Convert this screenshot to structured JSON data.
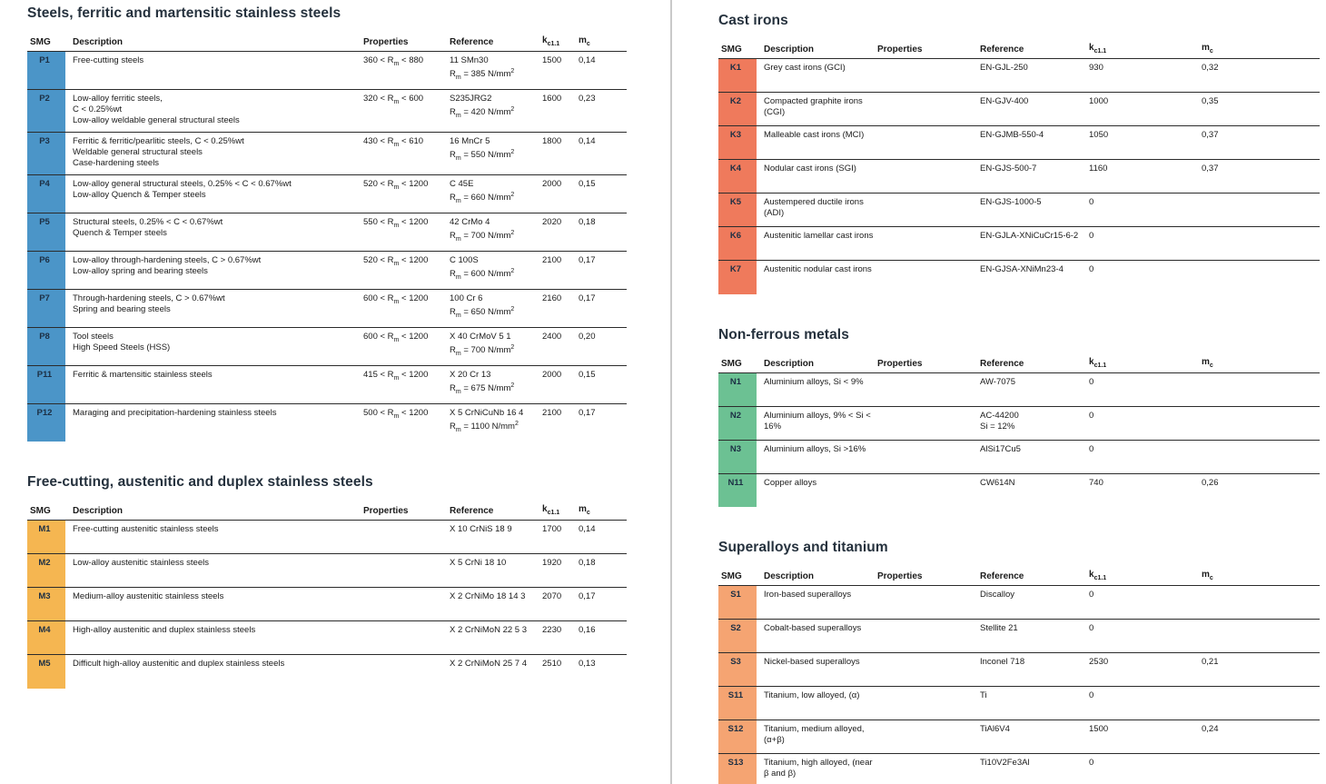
{
  "columns": {
    "smg": "SMG",
    "description": "Description",
    "properties": "Properties",
    "reference": "Reference",
    "kc": "k_{c1.1}",
    "mc": "m_{c}"
  },
  "divider_color": "#c9c9c9",
  "sections": [
    {
      "id": "steels-ferritic-martensitic",
      "pane": "left",
      "title": "Steels, ferritic and martensitic stainless steels",
      "badge_color": "#4b95c8",
      "rows": [
        {
          "smg": "P1",
          "description": [
            "Free-cutting steels"
          ],
          "properties": "360 < R_{m} < 880",
          "reference": [
            "11 SMn30",
            "R_{m} = 385 N/mm^{2}"
          ],
          "kc": "1500",
          "mc": "0,14"
        },
        {
          "smg": "P2",
          "description": [
            "Low-alloy ferritic steels,",
            "C < 0.25%wt",
            "Low-alloy weldable general structural steels"
          ],
          "properties": "320 < R_{m} < 600",
          "reference": [
            "S235JRG2",
            "R_{m} = 420 N/mm^{2}"
          ],
          "kc": "1600",
          "mc": "0,23"
        },
        {
          "smg": "P3",
          "description": [
            "Ferritic & ferritic/pearlitic steels, C < 0.25%wt",
            "Weldable general structural steels",
            "Case-hardening steels"
          ],
          "properties": "430 < R_{m} < 610",
          "reference": [
            "16 MnCr 5",
            "R_{m} = 550 N/mm^{2}"
          ],
          "kc": "1800",
          "mc": "0,14"
        },
        {
          "smg": "P4",
          "description": [
            "Low-alloy general structural steels, 0.25% < C < 0.67%wt",
            "Low-alloy Quench & Temper steels"
          ],
          "properties": "520 < R_{m} < 1200",
          "reference": [
            "C 45E",
            "R_{m} = 660 N/mm^{2}"
          ],
          "kc": "2000",
          "mc": "0,15"
        },
        {
          "smg": "P5",
          "description": [
            "Structural steels, 0.25% < C < 0.67%wt",
            "Quench & Temper steels"
          ],
          "properties": "550 < R_{m} < 1200",
          "reference": [
            "42 CrMo 4",
            "R_{m} = 700 N/mm^{2}"
          ],
          "kc": "2020",
          "mc": "0,18"
        },
        {
          "smg": "P6",
          "description": [
            "Low-alloy through-hardening steels, C > 0.67%wt",
            "Low-alloy spring and bearing steels"
          ],
          "properties": "520 < R_{m} < 1200",
          "reference": [
            "C 100S",
            "R_{m} = 600 N/mm^{2}"
          ],
          "kc": "2100",
          "mc": "0,17"
        },
        {
          "smg": "P7",
          "description": [
            "Through-hardening steels, C > 0.67%wt",
            "Spring and bearing steels"
          ],
          "properties": "600 < R_{m} < 1200",
          "reference": [
            "100 Cr 6",
            "R_{m} = 650 N/mm^{2}"
          ],
          "kc": "2160",
          "mc": "0,17"
        },
        {
          "smg": "P8",
          "description": [
            "Tool steels",
            "High Speed Steels (HSS)"
          ],
          "properties": "600 < R_{m} < 1200",
          "reference": [
            "X 40 CrMoV 5 1",
            "R_{m} = 700 N/mm^{2}"
          ],
          "kc": "2400",
          "mc": "0,20"
        },
        {
          "smg": "P11",
          "description": [
            "Ferritic & martensitic stainless steels"
          ],
          "properties": "415 < R_{m} < 1200",
          "reference": [
            "X 20 Cr 13",
            "R_{m} = 675 N/mm^{2}"
          ],
          "kc": "2000",
          "mc": "0,15"
        },
        {
          "smg": "P12",
          "description": [
            "Maraging and precipitation-hardening stainless steels"
          ],
          "properties": "500 < R_{m} < 1200",
          "reference": [
            "X 5 CrNiCuNb 16 4",
            "R_{m} = 1100 N/mm^{2}"
          ],
          "kc": "2100",
          "mc": "0,17"
        }
      ]
    },
    {
      "id": "free-cutting-austenitic-duplex",
      "pane": "left",
      "title": "Free-cutting, austenitic and duplex stainless steels",
      "badge_color": "#f5b651",
      "rows": [
        {
          "smg": "M1",
          "description": [
            "Free-cutting austenitic stainless steels"
          ],
          "properties": "",
          "reference": [
            "X 10 CrNiS 18 9"
          ],
          "kc": "1700",
          "mc": "0,14"
        },
        {
          "smg": "M2",
          "description": [
            "Low-alloy austenitic stainless steels"
          ],
          "properties": "",
          "reference": [
            "X 5 CrNi 18 10"
          ],
          "kc": "1920",
          "mc": "0,18"
        },
        {
          "smg": "M3",
          "description": [
            "Medium-alloy austenitic stainless steels"
          ],
          "properties": "",
          "reference": [
            "X 2 CrNiMo 18 14 3"
          ],
          "kc": "2070",
          "mc": "0,17"
        },
        {
          "smg": "M4",
          "description": [
            "High-alloy austenitic and duplex stainless steels"
          ],
          "properties": "",
          "reference": [
            "X 2 CrNiMoN 22 5 3"
          ],
          "kc": "2230",
          "mc": "0,16"
        },
        {
          "smg": "M5",
          "description": [
            "Difficult high-alloy austenitic and duplex stainless steels"
          ],
          "properties": "",
          "reference": [
            "X 2 CrNiMoN 25 7 4"
          ],
          "kc": "2510",
          "mc": "0,13"
        }
      ]
    },
    {
      "id": "cast-irons",
      "pane": "right",
      "title": "Cast irons",
      "badge_color": "#ef7a5c",
      "rows": [
        {
          "smg": "K1",
          "description": [
            "Grey cast irons (GCI)"
          ],
          "properties": "",
          "reference": [
            "EN-GJL-250"
          ],
          "kc": "930",
          "mc": "0,32"
        },
        {
          "smg": "K2",
          "description": [
            "Compacted graphite irons",
            "(CGI)"
          ],
          "properties": "",
          "reference": [
            "EN-GJV-400"
          ],
          "kc": "1000",
          "mc": "0,35"
        },
        {
          "smg": "K3",
          "description": [
            "Malleable cast irons (MCI)"
          ],
          "properties": "",
          "reference": [
            "EN-GJMB-550-4"
          ],
          "kc": "1050",
          "mc": "0,37"
        },
        {
          "smg": "K4",
          "description": [
            "Nodular cast irons (SGI)"
          ],
          "properties": "",
          "reference": [
            "EN-GJS-500-7"
          ],
          "kc": "1160",
          "mc": "0,37"
        },
        {
          "smg": "K5",
          "description": [
            "Austempered ductile irons",
            "(ADI)"
          ],
          "properties": "",
          "reference": [
            "EN-GJS-1000-5"
          ],
          "kc": "0",
          "mc": ""
        },
        {
          "smg": "K6",
          "description": [
            "Austenitic lamellar cast irons"
          ],
          "properties": "",
          "reference": [
            "EN-GJLA-XNiCuCr15-6-2"
          ],
          "kc": "0",
          "mc": ""
        },
        {
          "smg": "K7",
          "description": [
            "Austenitic nodular cast irons"
          ],
          "properties": "",
          "reference": [
            "EN-GJSA-XNiMn23-4"
          ],
          "kc": "0",
          "mc": ""
        }
      ]
    },
    {
      "id": "non-ferrous-metals",
      "pane": "right",
      "title": "Non-ferrous metals",
      "badge_color": "#6cc193",
      "rows": [
        {
          "smg": "N1",
          "description": [
            "Aluminium alloys, Si < 9%"
          ],
          "properties": "",
          "reference": [
            "AW-7075"
          ],
          "kc": "0",
          "mc": ""
        },
        {
          "smg": "N2",
          "description": [
            "Aluminium alloys, 9% < Si <",
            "16%"
          ],
          "properties": "",
          "reference": [
            "AC-44200",
            "Si = 12%"
          ],
          "kc": "0",
          "mc": ""
        },
        {
          "smg": "N3",
          "description": [
            "Aluminium alloys, Si >16%"
          ],
          "properties": "",
          "reference": [
            "AlSi17Cu5"
          ],
          "kc": "0",
          "mc": ""
        },
        {
          "smg": "N11",
          "description": [
            "Copper alloys"
          ],
          "properties": "",
          "reference": [
            "CW614N"
          ],
          "kc": "740",
          "mc": "0,26"
        }
      ]
    },
    {
      "id": "superalloys-titanium",
      "pane": "right",
      "title": "Superalloys and titanium",
      "badge_color": "#f5a472",
      "rows": [
        {
          "smg": "S1",
          "description": [
            "Iron-based superalloys"
          ],
          "properties": "",
          "reference": [
            "Discalloy"
          ],
          "kc": "0",
          "mc": ""
        },
        {
          "smg": "S2",
          "description": [
            "Cobalt-based superalloys"
          ],
          "properties": "",
          "reference": [
            "Stellite 21"
          ],
          "kc": "0",
          "mc": ""
        },
        {
          "smg": "S3",
          "description": [
            "Nickel-based superalloys"
          ],
          "properties": "",
          "reference": [
            "Inconel 718"
          ],
          "kc": "2530",
          "mc": "0,21"
        },
        {
          "smg": "S11",
          "description": [
            "Titanium, low alloyed, (α)"
          ],
          "properties": "",
          "reference": [
            "Ti"
          ],
          "kc": "0",
          "mc": ""
        },
        {
          "smg": "S12",
          "description": [
            "Titanium, medium alloyed,",
            "(α+β)"
          ],
          "properties": "",
          "reference": [
            "TiAl6V4"
          ],
          "kc": "1500",
          "mc": "0,24"
        },
        {
          "smg": "S13",
          "description": [
            "Titanium, high alloyed, (near",
            "β and β)"
          ],
          "properties": "",
          "reference": [
            "Ti10V2Fe3Al"
          ],
          "kc": "0",
          "mc": ""
        }
      ]
    }
  ]
}
